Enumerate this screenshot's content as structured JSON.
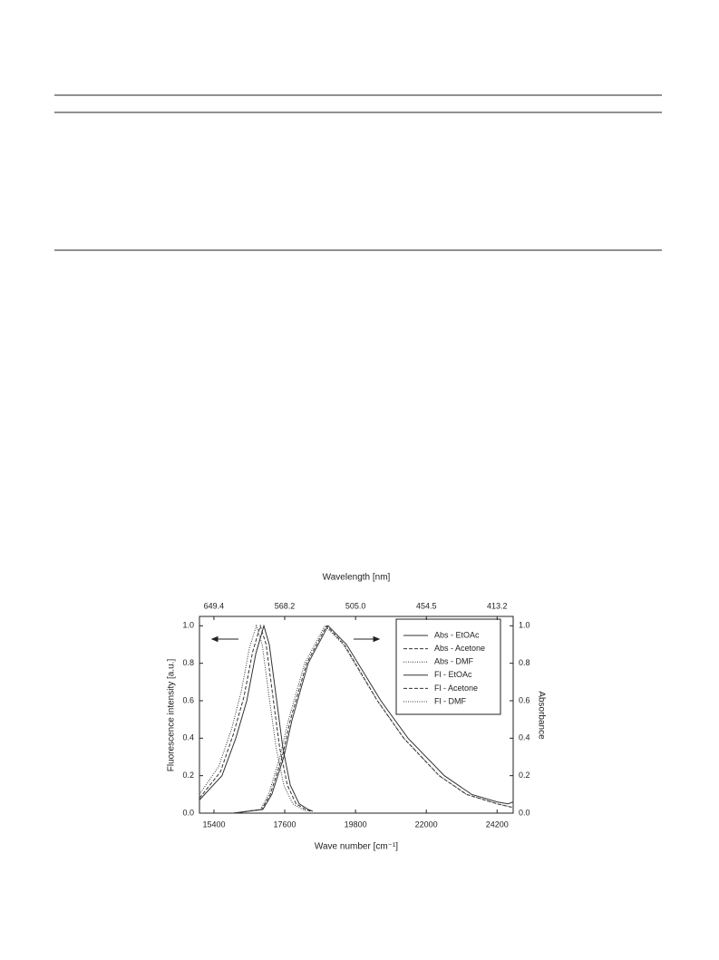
{
  "chart_data": {
    "type": "line",
    "x2label": "Wavelength [nm]",
    "xlabel": "Wave number [cm⁻¹]",
    "ylabel": "Fluorescence intensity [a.u.]",
    "y2label": "Absorbance",
    "xlim": [
      14950,
      24700
    ],
    "xticks": [
      15400,
      17600,
      19800,
      22000,
      24200
    ],
    "x2ticks": [
      649.4,
      568.2,
      {
        "value": 505,
        "label": "505.0"
      },
      454.5,
      413.2
    ],
    "ylim": [
      0,
      1.05
    ],
    "yticks": [
      {
        "value": 0,
        "label": "0.0"
      },
      0.2,
      0.4,
      0.6,
      0.8,
      {
        "value": 1,
        "label": "1.0"
      }
    ],
    "y2lim": [
      0,
      1.05
    ],
    "y2ticks": [
      {
        "value": 0,
        "label": "0.0"
      },
      0.2,
      0.4,
      0.6,
      0.8,
      {
        "value": 1,
        "label": "1.0"
      }
    ],
    "legend": "upper right",
    "series": [
      {
        "name": "Abs - EtOAc",
        "color": "#333333",
        "style": "solid",
        "axis": "y2",
        "x": [
          16000,
          16920,
          17200,
          17570,
          17830,
          18330,
          18950,
          19520,
          20590,
          21430,
          22560,
          23410,
          24200,
          24540,
          24700
        ],
        "values": [
          0.0,
          0.02,
          0.1,
          0.3,
          0.5,
          0.8,
          1.0,
          0.9,
          0.6,
          0.4,
          0.2,
          0.1,
          0.06,
          0.05,
          0.06
        ]
      },
      {
        "name": "Abs - Acetone",
        "color": "#333333",
        "style": "dashed",
        "axis": "y2",
        "x": [
          16000,
          16880,
          17150,
          17520,
          17780,
          18280,
          18900,
          19450,
          20480,
          21300,
          22400,
          23250,
          24200,
          24700
        ],
        "values": [
          0.0,
          0.02,
          0.1,
          0.3,
          0.5,
          0.8,
          1.0,
          0.9,
          0.6,
          0.4,
          0.2,
          0.1,
          0.05,
          0.03
        ]
      },
      {
        "name": "Abs - DMF",
        "color": "#333333",
        "style": "dotted",
        "axis": "y2",
        "x": [
          16000,
          16850,
          17100,
          17450,
          17720,
          18220,
          18850,
          19420,
          20480,
          21300,
          22400,
          23250,
          24200,
          24700
        ],
        "values": [
          0.0,
          0.02,
          0.1,
          0.3,
          0.5,
          0.8,
          1.0,
          0.9,
          0.6,
          0.4,
          0.2,
          0.1,
          0.05,
          0.03
        ]
      },
      {
        "name": "Fl - EtOAc",
        "color": "#333333",
        "style": "solid",
        "x": [
          14950,
          15650,
          16080,
          16420,
          16700,
          16950,
          17120,
          17350,
          17540,
          17770,
          18050,
          18330,
          18470
        ],
        "values": [
          0.07,
          0.2,
          0.4,
          0.6,
          0.85,
          1.0,
          0.9,
          0.6,
          0.35,
          0.15,
          0.05,
          0.02,
          0.01
        ]
      },
      {
        "name": "Fl - Acetone",
        "color": "#333333",
        "style": "dashed",
        "x": [
          14950,
          15600,
          16000,
          16330,
          16600,
          16840,
          17020,
          17250,
          17440,
          17680,
          17950,
          18250,
          18400
        ],
        "values": [
          0.08,
          0.22,
          0.42,
          0.62,
          0.86,
          1.0,
          0.9,
          0.6,
          0.35,
          0.15,
          0.05,
          0.02,
          0.01
        ]
      },
      {
        "name": "Fl - DMF",
        "color": "#333333",
        "style": "dotted",
        "x": [
          14950,
          15550,
          15950,
          16250,
          16500,
          16720,
          16900,
          17130,
          17330,
          17570,
          17850,
          18150,
          18300
        ],
        "values": [
          0.1,
          0.25,
          0.45,
          0.65,
          0.88,
          1.0,
          0.9,
          0.6,
          0.35,
          0.15,
          0.05,
          0.02,
          0.01
        ]
      }
    ]
  }
}
